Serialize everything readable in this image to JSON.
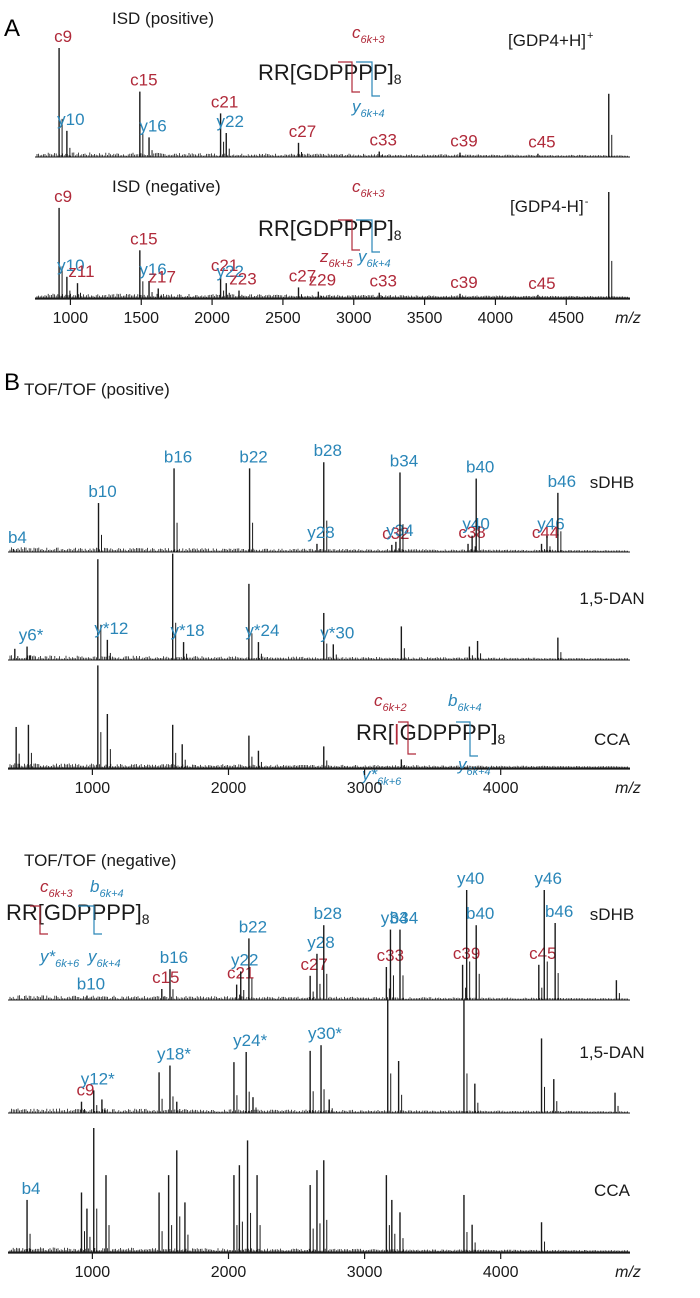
{
  "colors": {
    "red": "#b02a3a",
    "blue": "#2a86b8",
    "black": "#1a1a1a"
  },
  "panel_labels": [
    "A",
    "B"
  ],
  "chart_data": [
    {
      "id": "isd-positive",
      "type": "line",
      "title": "ISD (positive)",
      "xlim": [
        750,
        4950
      ],
      "ylim": [
        0,
        100
      ],
      "precursor": "[GDP4+H]",
      "precursor_sup": "+",
      "sequence": {
        "pre": "RR[",
        "g": "G",
        "d": "D",
        "post": "PPPP]",
        "rep": "8"
      },
      "fragment_notation": [
        {
          "main": "c",
          "sub": "6k+3",
          "color": "red"
        },
        {
          "main": "y",
          "sub": "6k+4",
          "color": "blue"
        }
      ],
      "peaks": [
        {
          "x": 920,
          "y": 100,
          "label": "c9",
          "color": "red"
        },
        {
          "x": 975,
          "y": 24,
          "label": "y10",
          "color": "blue"
        },
        {
          "x": 1490,
          "y": 60,
          "label": "c15",
          "color": "red"
        },
        {
          "x": 1555,
          "y": 18,
          "label": "y16",
          "color": "blue"
        },
        {
          "x": 2060,
          "y": 40,
          "label": "c21",
          "color": "red"
        },
        {
          "x": 2100,
          "y": 22,
          "label": "y22",
          "color": "blue"
        },
        {
          "x": 2610,
          "y": 13,
          "label": "c27",
          "color": "red"
        },
        {
          "x": 3180,
          "y": 5,
          "label": "c33",
          "color": "red"
        },
        {
          "x": 3750,
          "y": 4,
          "label": "c39",
          "color": "red"
        },
        {
          "x": 4300,
          "y": 3,
          "label": "c45",
          "color": "red"
        },
        {
          "x": 4800,
          "y": 58,
          "label": "",
          "color": "black"
        }
      ]
    },
    {
      "id": "isd-negative",
      "type": "line",
      "title": "ISD (negative)",
      "xlim": [
        750,
        4950
      ],
      "ylim": [
        0,
        100
      ],
      "precursor": "[GDP4-H]",
      "precursor_sup": "-",
      "sequence": {
        "pre": "RR[",
        "g": "G",
        "d": "D",
        "post": "PPPP]",
        "rep": "8"
      },
      "fragment_notation": [
        {
          "main": "c",
          "sub": "6k+3",
          "color": "red"
        },
        {
          "main": "z",
          "sub": "6k+5",
          "color": "red"
        },
        {
          "main": "y",
          "sub": "6k+4",
          "color": "blue"
        }
      ],
      "peaks": [
        {
          "x": 920,
          "y": 85,
          "label": "c9",
          "color": "red"
        },
        {
          "x": 975,
          "y": 20,
          "label": "y10",
          "color": "blue"
        },
        {
          "x": 1050,
          "y": 14,
          "label": "z11",
          "color": "red"
        },
        {
          "x": 1490,
          "y": 45,
          "label": "c15",
          "color": "red"
        },
        {
          "x": 1555,
          "y": 16,
          "label": "y16",
          "color": "blue"
        },
        {
          "x": 1620,
          "y": 9,
          "label": "z17",
          "color": "red"
        },
        {
          "x": 2060,
          "y": 20,
          "label": "c21",
          "color": "red"
        },
        {
          "x": 2100,
          "y": 14,
          "label": "y22",
          "color": "blue"
        },
        {
          "x": 2190,
          "y": 7,
          "label": "z23",
          "color": "red"
        },
        {
          "x": 2610,
          "y": 10,
          "label": "c27",
          "color": "red"
        },
        {
          "x": 2750,
          "y": 6,
          "label": "z29",
          "color": "red"
        },
        {
          "x": 3180,
          "y": 5,
          "label": "c33",
          "color": "red"
        },
        {
          "x": 3750,
          "y": 4,
          "label": "c39",
          "color": "red"
        },
        {
          "x": 4300,
          "y": 3,
          "label": "c45",
          "color": "red"
        },
        {
          "x": 4800,
          "y": 100,
          "label": "",
          "color": "black"
        }
      ],
      "xticks": [
        1000,
        1500,
        2000,
        2500,
        3000,
        3500,
        4000,
        4500
      ],
      "xlabel": "m/z"
    },
    {
      "id": "tof-positive-sdhb",
      "type": "line",
      "title": "TOF/TOF (positive)",
      "matrix": "sDHB",
      "xlim": [
        380,
        4950
      ],
      "ylim": [
        0,
        100
      ],
      "peaks": [
        {
          "x": 420,
          "y": 3,
          "label": "b4",
          "color": "blue"
        },
        {
          "x": 1045,
          "y": 48,
          "label": "b10",
          "color": "blue"
        },
        {
          "x": 1600,
          "y": 82,
          "label": "b16",
          "color": "blue"
        },
        {
          "x": 2155,
          "y": 82,
          "label": "b22",
          "color": "blue"
        },
        {
          "x": 2700,
          "y": 88,
          "label": "b28",
          "color": "blue"
        },
        {
          "x": 2650,
          "y": 8,
          "label": "y28",
          "color": "blue"
        },
        {
          "x": 3200,
          "y": 7,
          "label": "c32",
          "color": "red"
        },
        {
          "x": 3230,
          "y": 10,
          "label": "y34",
          "color": "blue"
        },
        {
          "x": 3260,
          "y": 78,
          "label": "b34",
          "color": "blue"
        },
        {
          "x": 3760,
          "y": 8,
          "label": "c38",
          "color": "red"
        },
        {
          "x": 3790,
          "y": 16,
          "label": "y40",
          "color": "blue"
        },
        {
          "x": 3820,
          "y": 72,
          "label": "b40",
          "color": "blue"
        },
        {
          "x": 4300,
          "y": 8,
          "label": "c44",
          "color": "red"
        },
        {
          "x": 4340,
          "y": 16,
          "label": "y46",
          "color": "blue"
        },
        {
          "x": 4420,
          "y": 58,
          "label": "b46",
          "color": "blue"
        }
      ]
    },
    {
      "id": "tof-positive-dan",
      "type": "line",
      "matrix": "1,5-DAN",
      "xlim": [
        380,
        4950
      ],
      "ylim": [
        0,
        100
      ],
      "peaks": [
        {
          "x": 430,
          "y": 10,
          "label": "",
          "color": "black"
        },
        {
          "x": 520,
          "y": 12,
          "label": "y6*",
          "color": "blue"
        },
        {
          "x": 1040,
          "y": 90,
          "label": "",
          "color": "black"
        },
        {
          "x": 1110,
          "y": 18,
          "label": "y*12",
          "color": "blue"
        },
        {
          "x": 1590,
          "y": 95,
          "label": "",
          "color": "black"
        },
        {
          "x": 1670,
          "y": 16,
          "label": "y*18",
          "color": "blue"
        },
        {
          "x": 2150,
          "y": 68,
          "label": "",
          "color": "black"
        },
        {
          "x": 2220,
          "y": 16,
          "label": "y*24",
          "color": "blue"
        },
        {
          "x": 2700,
          "y": 42,
          "label": "",
          "color": "black"
        },
        {
          "x": 2770,
          "y": 14,
          "label": "y*30",
          "color": "blue"
        },
        {
          "x": 3270,
          "y": 30,
          "label": "",
          "color": "black"
        },
        {
          "x": 3770,
          "y": 12,
          "label": "",
          "color": "black"
        },
        {
          "x": 3830,
          "y": 17,
          "label": "",
          "color": "black"
        },
        {
          "x": 4420,
          "y": 20,
          "label": "",
          "color": "black"
        }
      ]
    },
    {
      "id": "tof-positive-cca",
      "type": "line",
      "matrix": "CCA",
      "xlim": [
        380,
        4950
      ],
      "ylim": [
        0,
        100
      ],
      "sequence": {
        "pre": "RR[",
        "g": "G",
        "d": "D",
        "post": "PPPP]",
        "rep": "8",
        "bar": "|"
      },
      "fragment_notation": [
        {
          "main": "c",
          "sub": "6k+2",
          "color": "red"
        },
        {
          "main": "b",
          "sub": "6k+4",
          "color": "blue"
        },
        {
          "main": "y*",
          "sub": "6k+6",
          "color": "blue"
        },
        {
          "main": "y",
          "sub": "6k+4",
          "color": "blue"
        }
      ],
      "peaks": [
        {
          "x": 440,
          "y": 38,
          "label": "",
          "color": "black"
        },
        {
          "x": 530,
          "y": 40,
          "label": "",
          "color": "black"
        },
        {
          "x": 1040,
          "y": 95,
          "label": "",
          "color": "black"
        },
        {
          "x": 1110,
          "y": 50,
          "label": "",
          "color": "black"
        },
        {
          "x": 1590,
          "y": 40,
          "label": "",
          "color": "black"
        },
        {
          "x": 1660,
          "y": 22,
          "label": "",
          "color": "black"
        },
        {
          "x": 2150,
          "y": 30,
          "label": "",
          "color": "black"
        },
        {
          "x": 2220,
          "y": 16,
          "label": "",
          "color": "black"
        },
        {
          "x": 2700,
          "y": 20,
          "label": "",
          "color": "black"
        },
        {
          "x": 3270,
          "y": 8,
          "label": "",
          "color": "black"
        }
      ],
      "xticks": [
        1000,
        2000,
        3000,
        4000
      ],
      "xlabel": "m/z"
    },
    {
      "id": "tof-negative-sdhb",
      "type": "line",
      "title": "TOF/TOF (negative)",
      "matrix": "sDHB",
      "xlim": [
        380,
        4950
      ],
      "ylim": [
        0,
        100
      ],
      "sequence": {
        "pre": "RR[",
        "g": "G",
        "d": "D",
        "post": "PPPP]",
        "rep": "8"
      },
      "fragment_notation": [
        {
          "main": "c",
          "sub": "6k+3",
          "color": "red"
        },
        {
          "main": "b",
          "sub": "6k+4",
          "color": "blue"
        },
        {
          "main": "y*",
          "sub": "6k+6",
          "color": "blue"
        },
        {
          "main": "y",
          "sub": "6k+4",
          "color": "blue"
        }
      ],
      "peaks": [
        {
          "x": 960,
          "y": 4,
          "label": "b10",
          "color": "blue"
        },
        {
          "x": 1510,
          "y": 10,
          "label": "c15",
          "color": "red"
        },
        {
          "x": 1570,
          "y": 28,
          "label": "b16",
          "color": "blue"
        },
        {
          "x": 2060,
          "y": 14,
          "label": "c21",
          "color": "red"
        },
        {
          "x": 2090,
          "y": 26,
          "label": "y22",
          "color": "blue"
        },
        {
          "x": 2150,
          "y": 56,
          "label": "b22",
          "color": "blue"
        },
        {
          "x": 2600,
          "y": 22,
          "label": "c27",
          "color": "red"
        },
        {
          "x": 2650,
          "y": 42,
          "label": "y28",
          "color": "blue"
        },
        {
          "x": 2700,
          "y": 68,
          "label": "b28",
          "color": "blue"
        },
        {
          "x": 3160,
          "y": 30,
          "label": "c33",
          "color": "red"
        },
        {
          "x": 3190,
          "y": 64,
          "label": "y34",
          "color": "blue"
        },
        {
          "x": 3260,
          "y": 64,
          "label": "b34",
          "color": "blue"
        },
        {
          "x": 3720,
          "y": 32,
          "label": "c39",
          "color": "red"
        },
        {
          "x": 3750,
          "y": 100,
          "label": "y40",
          "color": "blue"
        },
        {
          "x": 3820,
          "y": 68,
          "label": "b40",
          "color": "blue"
        },
        {
          "x": 4280,
          "y": 32,
          "label": "c45",
          "color": "red"
        },
        {
          "x": 4320,
          "y": 100,
          "label": "y46",
          "color": "blue"
        },
        {
          "x": 4400,
          "y": 70,
          "label": "b46",
          "color": "blue"
        },
        {
          "x": 4850,
          "y": 18,
          "label": "",
          "color": "black"
        }
      ]
    },
    {
      "id": "tof-negative-dan",
      "type": "line",
      "matrix": "1,5-DAN",
      "xlim": [
        380,
        4950
      ],
      "ylim": [
        0,
        100
      ],
      "peaks": [
        {
          "x": 920,
          "y": 10,
          "label": "c9",
          "color": "red"
        },
        {
          "x": 1010,
          "y": 20,
          "label": "y12*",
          "color": "blue"
        },
        {
          "x": 1070,
          "y": 12,
          "label": "",
          "color": "black"
        },
        {
          "x": 1490,
          "y": 36,
          "label": "",
          "color": "black"
        },
        {
          "x": 1570,
          "y": 42,
          "label": "y18*",
          "color": "blue"
        },
        {
          "x": 1620,
          "y": 10,
          "label": "",
          "color": "black"
        },
        {
          "x": 2040,
          "y": 45,
          "label": "",
          "color": "black"
        },
        {
          "x": 2130,
          "y": 54,
          "label": "y24*",
          "color": "blue"
        },
        {
          "x": 2180,
          "y": 14,
          "label": "",
          "color": "black"
        },
        {
          "x": 2600,
          "y": 55,
          "label": "",
          "color": "black"
        },
        {
          "x": 2680,
          "y": 60,
          "label": "y30*",
          "color": "blue"
        },
        {
          "x": 2740,
          "y": 12,
          "label": "",
          "color": "black"
        },
        {
          "x": 3170,
          "y": 100,
          "label": "",
          "color": "black"
        },
        {
          "x": 3250,
          "y": 46,
          "label": "",
          "color": "black"
        },
        {
          "x": 3730,
          "y": 100,
          "label": "",
          "color": "black"
        },
        {
          "x": 3810,
          "y": 26,
          "label": "",
          "color": "black"
        },
        {
          "x": 4300,
          "y": 66,
          "label": "",
          "color": "black"
        },
        {
          "x": 4390,
          "y": 30,
          "label": "",
          "color": "black"
        },
        {
          "x": 4840,
          "y": 18,
          "label": "",
          "color": "black"
        }
      ]
    },
    {
      "id": "tof-negative-cca",
      "type": "line",
      "matrix": "CCA",
      "xlim": [
        380,
        4950
      ],
      "ylim": [
        0,
        100
      ],
      "peaks": [
        {
          "x": 520,
          "y": 42,
          "label": "b4",
          "color": "blue"
        },
        {
          "x": 920,
          "y": 48,
          "label": "",
          "color": "black"
        },
        {
          "x": 960,
          "y": 35,
          "label": "",
          "color": "black"
        },
        {
          "x": 1010,
          "y": 100,
          "label": "",
          "color": "black"
        },
        {
          "x": 1100,
          "y": 62,
          "label": "",
          "color": "black"
        },
        {
          "x": 1490,
          "y": 48,
          "label": "",
          "color": "black"
        },
        {
          "x": 1560,
          "y": 62,
          "label": "",
          "color": "black"
        },
        {
          "x": 1620,
          "y": 82,
          "label": "",
          "color": "black"
        },
        {
          "x": 1680,
          "y": 40,
          "label": "",
          "color": "black"
        },
        {
          "x": 2040,
          "y": 62,
          "label": "",
          "color": "black"
        },
        {
          "x": 2080,
          "y": 70,
          "label": "",
          "color": "black"
        },
        {
          "x": 2140,
          "y": 90,
          "label": "",
          "color": "black"
        },
        {
          "x": 2210,
          "y": 62,
          "label": "",
          "color": "black"
        },
        {
          "x": 2600,
          "y": 54,
          "label": "",
          "color": "black"
        },
        {
          "x": 2650,
          "y": 66,
          "label": "",
          "color": "black"
        },
        {
          "x": 2700,
          "y": 74,
          "label": "",
          "color": "black"
        },
        {
          "x": 3160,
          "y": 62,
          "label": "",
          "color": "black"
        },
        {
          "x": 3200,
          "y": 42,
          "label": "",
          "color": "black"
        },
        {
          "x": 3260,
          "y": 32,
          "label": "",
          "color": "black"
        },
        {
          "x": 3730,
          "y": 46,
          "label": "",
          "color": "black"
        },
        {
          "x": 3790,
          "y": 22,
          "label": "",
          "color": "black"
        },
        {
          "x": 4300,
          "y": 24,
          "label": "",
          "color": "black"
        }
      ],
      "xticks": [
        1000,
        2000,
        3000,
        4000
      ],
      "xlabel": "m/z"
    }
  ]
}
